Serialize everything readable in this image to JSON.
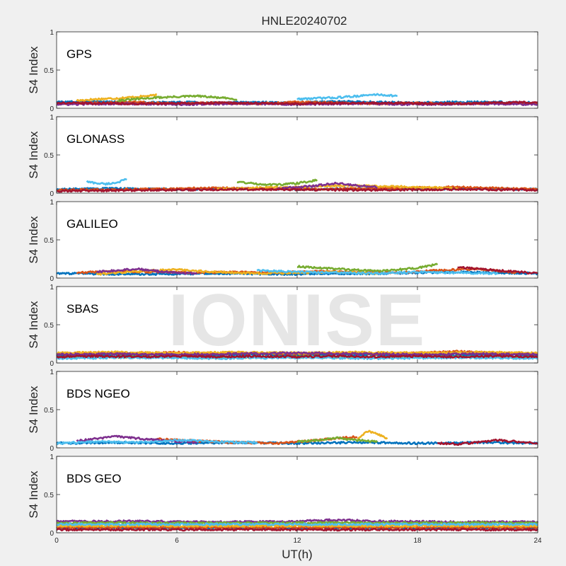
{
  "chart_data": {
    "type": "scatter",
    "title": "HNLE20240702",
    "xlabel": "UT(h)",
    "ylabel": "S4 Index",
    "xlim": [
      0,
      24
    ],
    "ylim": [
      0,
      1
    ],
    "xticks": [
      "0",
      "6",
      "12",
      "18",
      "24"
    ],
    "yticks": [
      "0",
      "0.5",
      "1"
    ],
    "grid": false,
    "watermark": "IONISE",
    "colors": [
      "#0072BD",
      "#D95319",
      "#EDB120",
      "#7E2F8E",
      "#77AC30",
      "#4DBEEE",
      "#A2142F"
    ],
    "panels": [
      {
        "name": "GPS",
        "series": [
          {
            "x": [
              0,
              2,
              4,
              6,
              8,
              10,
              12,
              14,
              16,
              18,
              20,
              22,
              24
            ],
            "y": [
              0.08,
              0.09,
              0.07,
              0.08,
              0.07,
              0.08,
              0.07,
              0.09,
              0.08,
              0.07,
              0.08,
              0.08,
              0.07
            ]
          },
          {
            "x": [
              0,
              2,
              4,
              6,
              8,
              10,
              12,
              14,
              16,
              18,
              20,
              22,
              24
            ],
            "y": [
              0.06,
              0.07,
              0.08,
              0.06,
              0.07,
              0.06,
              0.08,
              0.07,
              0.06,
              0.07,
              0.06,
              0.07,
              0.06
            ]
          },
          {
            "x": [
              1,
              2,
              3,
              4,
              5
            ],
            "y": [
              0.1,
              0.12,
              0.13,
              0.15,
              0.17
            ]
          },
          {
            "x": [
              0,
              3,
              6,
              9,
              12,
              15,
              18,
              21,
              24
            ],
            "y": [
              0.05,
              0.06,
              0.05,
              0.06,
              0.05,
              0.06,
              0.05,
              0.06,
              0.05
            ]
          },
          {
            "x": [
              3,
              4,
              5,
              7,
              8,
              9
            ],
            "y": [
              0.1,
              0.12,
              0.14,
              0.16,
              0.14,
              0.12
            ]
          },
          {
            "x": [
              12,
              13,
              14,
              15,
              16,
              17
            ],
            "y": [
              0.12,
              0.13,
              0.14,
              0.16,
              0.18,
              0.16
            ]
          },
          {
            "x": [
              0,
              4,
              8,
              12,
              16,
              20,
              24
            ],
            "y": [
              0.07,
              0.06,
              0.07,
              0.06,
              0.07,
              0.06,
              0.08
            ]
          }
        ]
      },
      {
        "name": "GLONASS",
        "series": [
          {
            "x": [
              0,
              3,
              6,
              9,
              12,
              15,
              18,
              21,
              24
            ],
            "y": [
              0.05,
              0.06,
              0.05,
              0.06,
              0.05,
              0.06,
              0.05,
              0.06,
              0.05
            ]
          },
          {
            "x": [
              0,
              4,
              8,
              12,
              16,
              20,
              24
            ],
            "y": [
              0.04,
              0.05,
              0.07,
              0.05,
              0.06,
              0.08,
              0.05
            ]
          },
          {
            "x": [
              8,
              10,
              12,
              14,
              16,
              18,
              20
            ],
            "y": [
              0.05,
              0.07,
              0.08,
              0.1,
              0.09,
              0.08,
              0.06
            ]
          },
          {
            "x": [
              11,
              12,
              13,
              14,
              15,
              16
            ],
            "y": [
              0.06,
              0.08,
              0.1,
              0.13,
              0.1,
              0.08
            ]
          },
          {
            "x": [
              9,
              10,
              11,
              12,
              13
            ],
            "y": [
              0.15,
              0.12,
              0.11,
              0.13,
              0.17
            ]
          },
          {
            "x": [
              1.5,
              2,
              2.5,
              3,
              3.5
            ],
            "y": [
              0.15,
              0.13,
              0.12,
              0.14,
              0.18
            ]
          },
          {
            "x": [
              0,
              5,
              10,
              15,
              20,
              24
            ],
            "y": [
              0.03,
              0.04,
              0.05,
              0.04,
              0.05,
              0.04
            ]
          }
        ]
      },
      {
        "name": "GALILEO",
        "series": [
          {
            "x": [
              0,
              4,
              8,
              12,
              16,
              20,
              24
            ],
            "y": [
              0.06,
              0.05,
              0.06,
              0.05,
              0.06,
              0.08,
              0.06
            ]
          },
          {
            "x": [
              1,
              3,
              5,
              7,
              9,
              11,
              13,
              15,
              17,
              19,
              21,
              23
            ],
            "y": [
              0.07,
              0.09,
              0.08,
              0.07,
              0.08,
              0.07,
              0.09,
              0.08,
              0.07,
              0.1,
              0.12,
              0.07
            ]
          },
          {
            "x": [
              2,
              4,
              6,
              8,
              10,
              12,
              14,
              16
            ],
            "y": [
              0.05,
              0.09,
              0.11,
              0.08,
              0.06,
              0.07,
              0.08,
              0.06
            ]
          },
          {
            "x": [
              2,
              3,
              4,
              5,
              6,
              7
            ],
            "y": [
              0.08,
              0.1,
              0.12,
              0.09,
              0.07,
              0.06
            ]
          },
          {
            "x": [
              12,
              14,
              16,
              18,
              19
            ],
            "y": [
              0.15,
              0.12,
              0.09,
              0.13,
              0.18
            ]
          },
          {
            "x": [
              10,
              12,
              14,
              16,
              18,
              20,
              22
            ],
            "y": [
              0.1,
              0.08,
              0.07,
              0.06,
              0.08,
              0.07,
              0.06
            ]
          },
          {
            "x": [
              20,
              21,
              22,
              23,
              24
            ],
            "y": [
              0.14,
              0.12,
              0.1,
              0.08,
              0.06
            ]
          }
        ]
      },
      {
        "name": "SBAS",
        "series": [
          {
            "x": [
              0,
              2,
              4,
              6,
              8,
              10,
              12,
              14,
              16,
              18,
              20,
              22,
              24
            ],
            "y": [
              0.09,
              0.11,
              0.1,
              0.11,
              0.1,
              0.11,
              0.1,
              0.11,
              0.1,
              0.11,
              0.1,
              0.11,
              0.1
            ]
          },
          {
            "x": [
              0,
              2,
              4,
              6,
              8,
              10,
              12,
              14,
              16,
              18,
              20,
              22,
              24
            ],
            "y": [
              0.12,
              0.13,
              0.12,
              0.14,
              0.12,
              0.13,
              0.12,
              0.13,
              0.12,
              0.13,
              0.15,
              0.13,
              0.12
            ]
          },
          {
            "x": [
              0,
              3,
              6,
              9,
              12,
              15,
              18,
              21,
              24
            ],
            "y": [
              0.13,
              0.14,
              0.13,
              0.14,
              0.13,
              0.14,
              0.13,
              0.14,
              0.13
            ]
          },
          {
            "x": [
              0,
              3,
              6,
              9,
              12,
              15,
              18,
              21,
              24
            ],
            "y": [
              0.11,
              0.12,
              0.11,
              0.12,
              0.13,
              0.12,
              0.11,
              0.12,
              0.11
            ]
          },
          {
            "x": [
              0,
              4,
              8,
              12,
              16,
              20,
              24
            ],
            "y": [
              0.07,
              0.08,
              0.07,
              0.08,
              0.07,
              0.08,
              0.07
            ]
          },
          {
            "x": [
              0,
              4,
              8,
              12,
              16,
              20,
              24
            ],
            "y": [
              0.06,
              0.07,
              0.06,
              0.07,
              0.06,
              0.07,
              0.06
            ]
          },
          {
            "x": [
              0,
              2,
              4,
              6,
              8,
              10,
              12,
              14,
              16,
              18,
              20,
              22,
              24
            ],
            "y": [
              0.08,
              0.09,
              0.08,
              0.09,
              0.08,
              0.09,
              0.08,
              0.09,
              0.08,
              0.09,
              0.08,
              0.09,
              0.08
            ]
          }
        ]
      },
      {
        "name": "BDS NGEO",
        "series": [
          {
            "x": [
              0,
              3,
              6,
              9,
              12,
              15,
              18,
              21,
              24
            ],
            "y": [
              0.06,
              0.07,
              0.06,
              0.07,
              0.06,
              0.07,
              0.06,
              0.07,
              0.06
            ]
          },
          {
            "x": [
              5,
              7,
              9,
              11,
              13,
              15
            ],
            "y": [
              0.12,
              0.09,
              0.07,
              0.06,
              0.1,
              0.15
            ]
          },
          {
            "x": [
              15,
              15.5,
              16,
              16.5
            ],
            "y": [
              0.12,
              0.22,
              0.18,
              0.12
            ]
          },
          {
            "x": [
              1,
              2,
              3,
              5,
              7
            ],
            "y": [
              0.09,
              0.12,
              0.15,
              0.1,
              0.07
            ]
          },
          {
            "x": [
              12,
              13,
              14,
              15,
              16
            ],
            "y": [
              0.08,
              0.1,
              0.13,
              0.1,
              0.08
            ]
          },
          {
            "x": [
              0,
              2,
              4,
              6,
              8,
              10
            ],
            "y": [
              0.06,
              0.08,
              0.07,
              0.1,
              0.08,
              0.07
            ]
          },
          {
            "x": [
              19,
              20,
              21,
              22,
              23,
              24
            ],
            "y": [
              0.06,
              0.05,
              0.07,
              0.1,
              0.08,
              0.06
            ]
          }
        ]
      },
      {
        "name": "BDS GEO",
        "series": [
          {
            "x": [
              0,
              24
            ],
            "y": [
              0.06,
              0.06
            ]
          },
          {
            "x": [
              0,
              24
            ],
            "y": [
              0.07,
              0.07
            ]
          },
          {
            "x": [
              0,
              24
            ],
            "y": [
              0.09,
              0.09
            ]
          },
          {
            "x": [
              0,
              4,
              8,
              12,
              14,
              16,
              20,
              24
            ],
            "y": [
              0.15,
              0.15,
              0.14,
              0.15,
              0.17,
              0.15,
              0.14,
              0.14
            ]
          },
          {
            "x": [
              0,
              24
            ],
            "y": [
              0.13,
              0.13
            ]
          },
          {
            "x": [
              0,
              24
            ],
            "y": [
              0.11,
              0.11
            ]
          },
          {
            "x": [
              0,
              24
            ],
            "y": [
              0.04,
              0.04
            ]
          }
        ]
      }
    ]
  }
}
